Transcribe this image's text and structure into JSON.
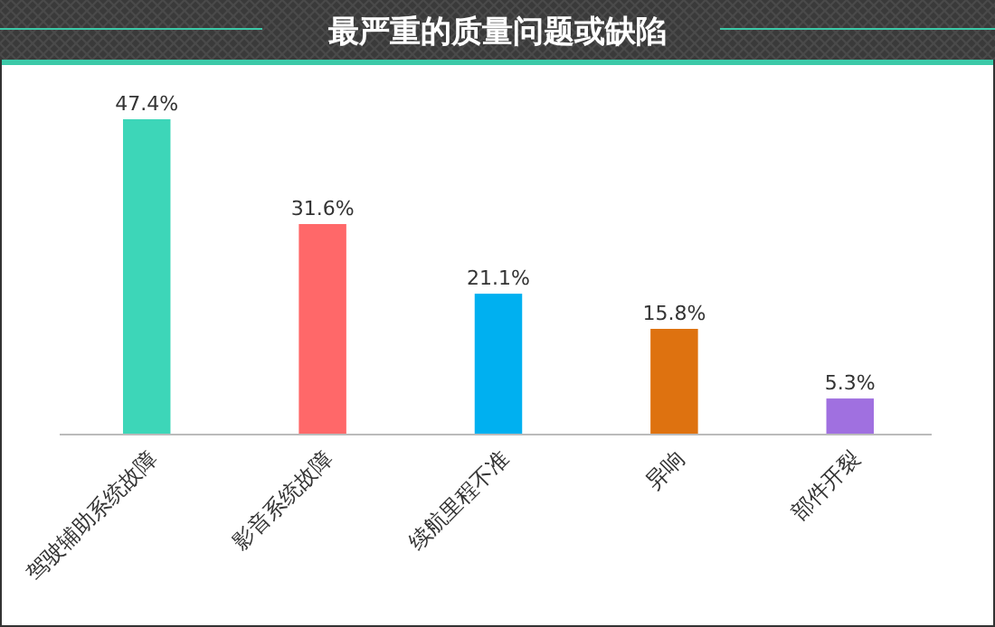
{
  "chart_data": {
    "type": "bar",
    "title": "最严重的质量问题或缺陷",
    "categories": [
      "驾驶辅助系统故障",
      "影音系统故障",
      "续航里程不准",
      "异响",
      "部件开裂"
    ],
    "values": [
      47.4,
      31.6,
      21.1,
      15.8,
      5.3
    ],
    "value_labels": [
      "47.4%",
      "31.6%",
      "21.1%",
      "15.8%",
      "5.3%"
    ],
    "colors": [
      "#3dd6b8",
      "#ff6869",
      "#00b0f0",
      "#de7210",
      "#a070e0"
    ]
  }
}
